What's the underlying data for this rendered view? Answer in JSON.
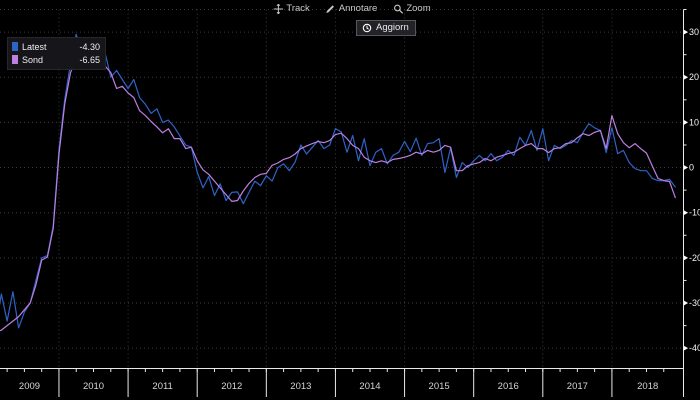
{
  "toolbar": {
    "items": [
      {
        "icon": "crosshair-icon",
        "label": "Track"
      },
      {
        "icon": "pencil-icon",
        "label": "Annotare"
      },
      {
        "icon": "magnifier-icon",
        "label": "Zoom"
      }
    ],
    "refresh_label": "Aggiorn"
  },
  "legend": {
    "entries": [
      {
        "label": "Latest",
        "value": "-4.30",
        "color": "#2e63c8"
      },
      {
        "label": "Sond",
        "value": "-6.65",
        "color": "#bd7fe0"
      }
    ]
  },
  "ui_colors": {
    "background": "#000000",
    "axis": "#e9e9e9",
    "grid": "#3c3c3c",
    "text": "#d6d6d6"
  },
  "chart_data": {
    "type": "line",
    "title": "",
    "xlabel": "",
    "ylabel": "",
    "x_unit": "month",
    "x_start": "2009-02",
    "x_end": "2018-12",
    "grid": true,
    "legend_position": "top-left",
    "year_labels": [
      "2009",
      "2010",
      "2011",
      "2012",
      "2013",
      "2014",
      "2015",
      "2016",
      "2017",
      "2018"
    ],
    "y_ticks": [
      30,
      20,
      10,
      0,
      -10,
      -20,
      -30,
      -40
    ],
    "y_minor_step": 5,
    "y_range": [
      -44.5,
      35
    ],
    "series": [
      {
        "name": "Latest",
        "color": "#2e63c8",
        "values": [
          -35.5,
          -28,
          -34,
          -27.5,
          -35.5,
          -32,
          -30,
          -25,
          -20,
          -19.5,
          -13,
          4,
          15,
          23,
          29.5,
          25.5,
          27.5,
          26,
          23.5,
          25.5,
          20,
          21.5,
          19.5,
          17.5,
          19.5,
          15.5,
          14,
          12,
          13,
          10,
          10.5,
          9,
          7,
          5,
          4.5,
          -1,
          -4.5,
          -2,
          -6.2,
          -3.6,
          -7.3,
          -5.5,
          -5.4,
          -8,
          -5.5,
          -3,
          -4,
          -1.8,
          -3,
          0,
          0.8,
          -0.7,
          1.2,
          5,
          3,
          4.5,
          6,
          4.2,
          5,
          8.6,
          7.9,
          3.4,
          7.1,
          1.5,
          6.4,
          0.4,
          3.4,
          4.2,
          0.8,
          2.7,
          3.4,
          5.8,
          3.5,
          6.5,
          2.7,
          5.3,
          5.5,
          6.4,
          -1.1,
          4.4,
          -2.2,
          1.1,
          0,
          1.5,
          2.7,
          1.5,
          3.1,
          1.5,
          2.3,
          3.8,
          2.7,
          6.7,
          4.9,
          8.2,
          3.8,
          8.6,
          1.5,
          4.9,
          4.2,
          4.9,
          6,
          5.5,
          7.8,
          9.7,
          8.8,
          8.2,
          3.3,
          8.8,
          3.1,
          3.8,
          1.1,
          -0.2,
          -0.7,
          -0.7,
          -2.4,
          -2.9,
          -2.9,
          -2.6,
          -4.3
        ]
      },
      {
        "name": "Sond",
        "color": "#bd7fe0",
        "values": [
          -36.5,
          -36,
          -35,
          -34,
          -33,
          -31.5,
          -30,
          -26,
          -20.5,
          -19.8,
          -13.5,
          3,
          14,
          21,
          24,
          26,
          23,
          24.5,
          25,
          22.5,
          21,
          17.5,
          18,
          16.5,
          15.5,
          12.6,
          11.5,
          10.2,
          9,
          7.7,
          8.6,
          6.4,
          6.4,
          4.2,
          4.5,
          1.5,
          -0.5,
          -1.5,
          -3,
          -4.5,
          -6,
          -7.5,
          -7.3,
          -5.2,
          -3.5,
          -2.2,
          -1.5,
          -1.3,
          0.5,
          1,
          1.8,
          2.2,
          3,
          4.2,
          4.8,
          5.3,
          5.8,
          5.5,
          6,
          7.3,
          7.6,
          6.4,
          4.9,
          4.2,
          2.3,
          1.5,
          1.1,
          1.5,
          1.1,
          1.8,
          2,
          2.3,
          2.7,
          3.4,
          3,
          3.8,
          3.4,
          3.8,
          4.9,
          4.5,
          -0.7,
          -0.7,
          0.4,
          0.8,
          1.1,
          2,
          1.5,
          2.3,
          2.7,
          3.1,
          3.4,
          4.2,
          4.9,
          5.3,
          4.2,
          4.2,
          3.3,
          4.2,
          4.4,
          5.3,
          5.5,
          6.6,
          7.5,
          7.1,
          7.8,
          8.2,
          4.2,
          11.5,
          7.5,
          5.5,
          4.4,
          5.3,
          4.2,
          3.2,
          0.4,
          -2.4,
          -2.9,
          -3.1,
          -6.65
        ]
      }
    ]
  }
}
